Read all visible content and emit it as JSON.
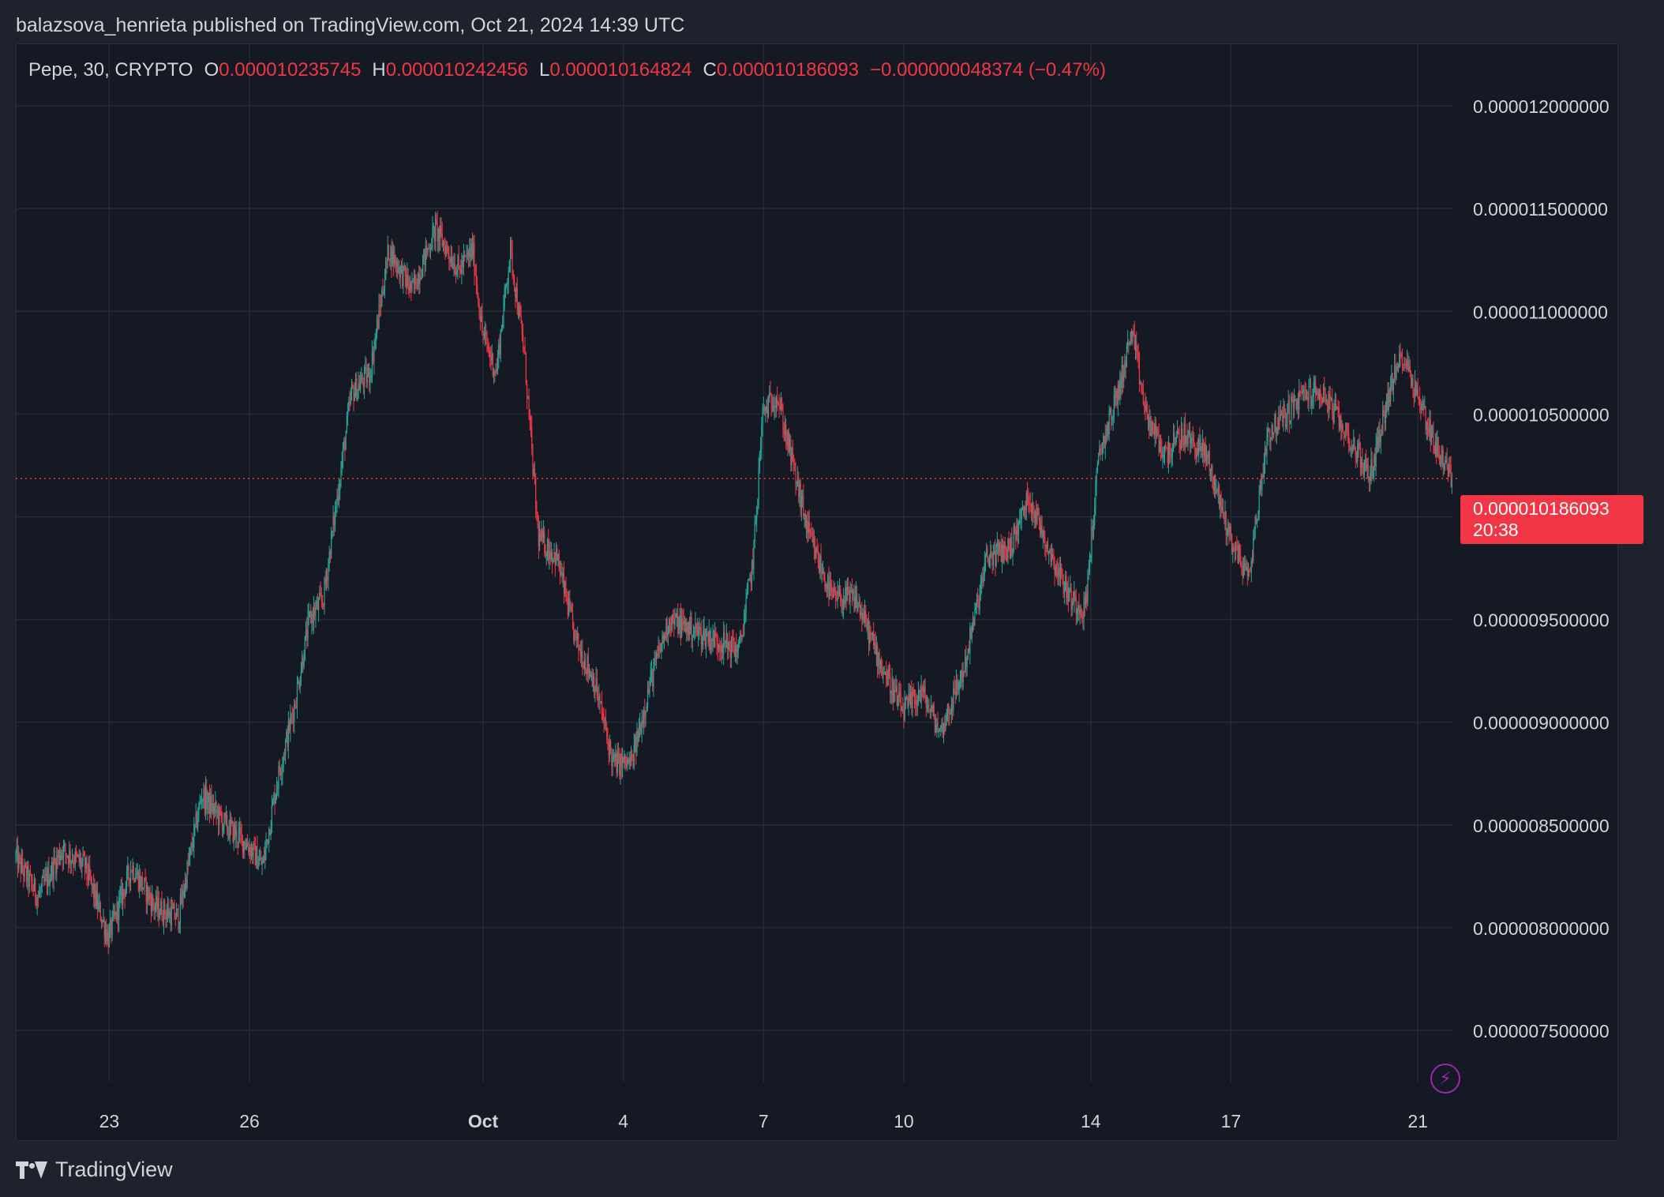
{
  "header": {
    "publisher_text": "balazsova_henrieta published on TradingView.com, Oct 21, 2024 14:39 UTC"
  },
  "legend": {
    "symbol": "Pepe, 30, CRYPTO",
    "open_label": "O",
    "open": "0.000010235745",
    "high_label": "H",
    "high": "0.000010242456",
    "low_label": "L",
    "low": "0.000010164824",
    "close_label": "C",
    "close": "0.000010186093",
    "change": "−0.000000048374 (−0.47%)"
  },
  "price_tag": {
    "price": "0.000010186093",
    "countdown": "20:38"
  },
  "footer": {
    "brand": "TradingView"
  },
  "colors": {
    "up": "#26a69a",
    "down": "#f23645",
    "grid": "#262a35",
    "text": "#d1d4dc",
    "background": "#151924"
  },
  "icons": {
    "bolt": "lightning-bolt-icon",
    "logo": "tradingview-logo-icon"
  },
  "chart_data": {
    "type": "candlestick",
    "title": "Pepe, 30, CRYPTO",
    "interval": "30",
    "y_ticks": [
      "0.000012000000",
      "0.000011500000",
      "0.000011000000",
      "0.000010500000",
      "0.000010000000",
      "0.000009500000",
      "0.000009000000",
      "0.000008500000",
      "0.000008000000",
      "0.000007500000"
    ],
    "y_tick_values": [
      1.2e-05,
      1.15e-05,
      1.1e-05,
      1.05e-05,
      1e-05,
      9.5e-06,
      9e-06,
      8.5e-06,
      8e-06,
      7.5e-06
    ],
    "ylim": [
      7.25e-06,
      1.23e-05
    ],
    "x_ticks": [
      "23",
      "26",
      "Oct",
      "4",
      "7",
      "10",
      "14",
      "17",
      "21"
    ],
    "x_tick_days": [
      3,
      6,
      11,
      14,
      17,
      20,
      24,
      27,
      31
    ],
    "xlim_days": [
      1,
      31.74
    ],
    "last_price": 1.0186093e-05,
    "grid": true,
    "path_points_days_prices": [
      [
        1.0,
        8.35e-06
      ],
      [
        1.5,
        8.15e-06
      ],
      [
        2.0,
        8.38e-06
      ],
      [
        2.5,
        8.3e-06
      ],
      [
        3.0,
        7.95e-06
      ],
      [
        3.5,
        8.3e-06
      ],
      [
        4.0,
        8.1e-06
      ],
      [
        4.5,
        8.05e-06
      ],
      [
        5.0,
        8.65e-06
      ],
      [
        5.5,
        8.5e-06
      ],
      [
        6.0,
        8.4e-06
      ],
      [
        6.3,
        8.3e-06
      ],
      [
        6.6,
        8.7e-06
      ],
      [
        7.0,
        9.1e-06
      ],
      [
        7.3,
        9.5e-06
      ],
      [
        7.6,
        9.6e-06
      ],
      [
        7.9,
        1.01e-05
      ],
      [
        8.2,
        1.06e-05
      ],
      [
        8.6,
        1.07e-05
      ],
      [
        9.0,
        1.13e-05
      ],
      [
        9.5,
        1.11e-05
      ],
      [
        10.0,
        1.14e-05
      ],
      [
        10.5,
        1.12e-05
      ],
      [
        10.8,
        1.13e-05
      ],
      [
        11.0,
        1.09e-05
      ],
      [
        11.3,
        1.07e-05
      ],
      [
        11.6,
        1.13e-05
      ],
      [
        11.9,
        1.08e-05
      ],
      [
        12.2,
        9.9e-06
      ],
      [
        12.6,
        9.8e-06
      ],
      [
        13.0,
        9.4e-06
      ],
      [
        13.4,
        9.2e-06
      ],
      [
        13.8,
        8.8e-06
      ],
      [
        14.2,
        8.8e-06
      ],
      [
        14.6,
        9.2e-06
      ],
      [
        15.0,
        9.5e-06
      ],
      [
        15.5,
        9.45e-06
      ],
      [
        16.0,
        9.4e-06
      ],
      [
        16.5,
        9.35e-06
      ],
      [
        16.8,
        9.8e-06
      ],
      [
        17.0,
        1.05e-05
      ],
      [
        17.3,
        1.06e-05
      ],
      [
        17.6,
        1.03e-05
      ],
      [
        18.0,
        9.9e-06
      ],
      [
        18.5,
        9.6e-06
      ],
      [
        19.0,
        9.6e-06
      ],
      [
        19.5,
        9.3e-06
      ],
      [
        20.0,
        9.05e-06
      ],
      [
        20.4,
        9.15e-06
      ],
      [
        20.8,
        8.95e-06
      ],
      [
        21.3,
        9.25e-06
      ],
      [
        21.8,
        9.8e-06
      ],
      [
        22.3,
        9.85e-06
      ],
      [
        22.7,
        1.01e-05
      ],
      [
        23.2,
        9.8e-06
      ],
      [
        23.6,
        9.6e-06
      ],
      [
        23.9,
        9.55e-06
      ],
      [
        24.2,
        1.03e-05
      ],
      [
        24.6,
        1.06e-05
      ],
      [
        24.9,
        1.09e-05
      ],
      [
        25.2,
        1.05e-05
      ],
      [
        25.6,
        1.03e-05
      ],
      [
        26.0,
        1.04e-05
      ],
      [
        26.5,
        1.03e-05
      ],
      [
        27.0,
        9.9e-06
      ],
      [
        27.4,
        9.7e-06
      ],
      [
        27.8,
        1.04e-05
      ],
      [
        28.2,
        1.05e-05
      ],
      [
        28.6,
        1.06e-05
      ],
      [
        29.0,
        1.06e-05
      ],
      [
        29.5,
        1.04e-05
      ],
      [
        30.0,
        1.02e-05
      ],
      [
        30.4,
        1.06e-05
      ],
      [
        30.7,
        1.08e-05
      ],
      [
        31.0,
        1.06e-05
      ],
      [
        31.4,
        1.035e-05
      ],
      [
        31.74,
        1.0186093e-05
      ]
    ]
  }
}
